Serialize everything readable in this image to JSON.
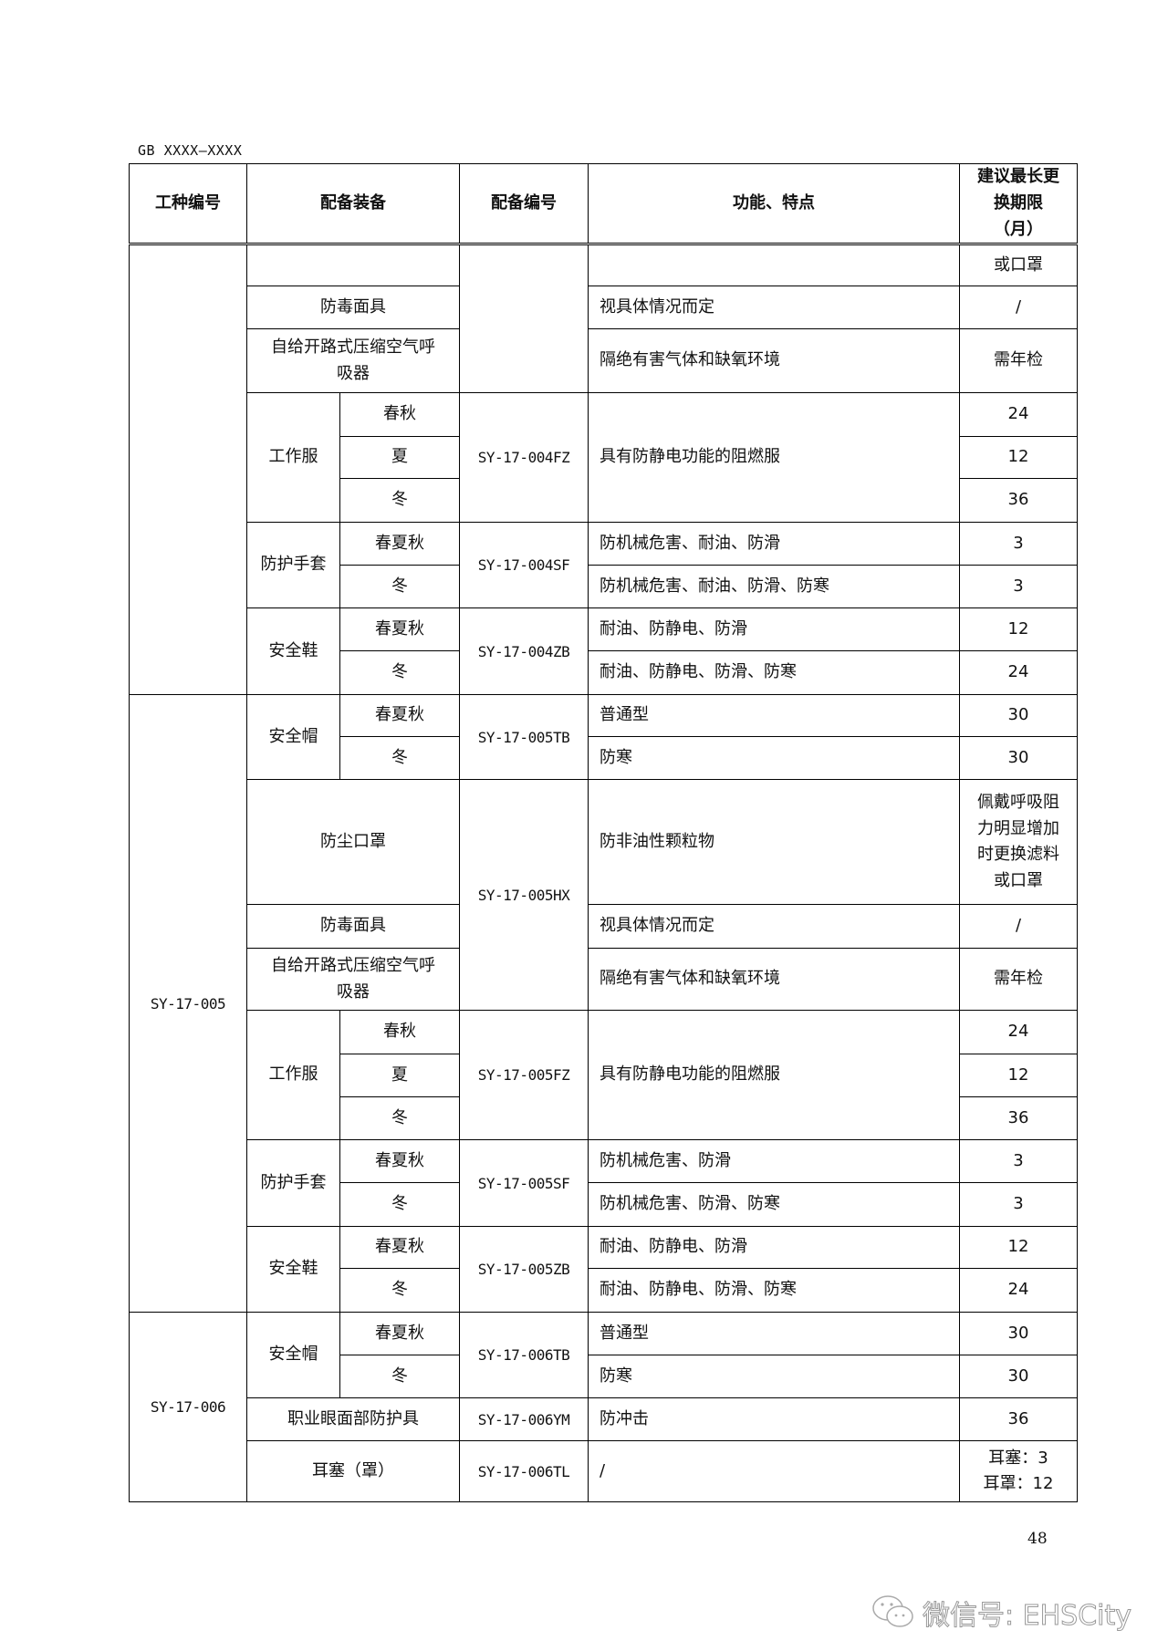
{
  "header": {
    "doc_id": "GB XXXX—XXXX"
  },
  "table": {
    "columns": [
      "工种编号",
      "配备装备",
      "配备编号",
      "功能、特点",
      "建议最长更换期限（月）"
    ],
    "rows": [
      {
        "job": "",
        "equip": "",
        "code": "",
        "func": "",
        "period": "或口罩"
      },
      {
        "equip": "防毒面具",
        "func": "视具体情况而定",
        "period": "/"
      },
      {
        "equip": "自给开路式压缩空气呼吸器",
        "func": "隔绝有害气体和缺氧环境",
        "period": "需年检"
      },
      {
        "equip": "工作服",
        "season": "春秋",
        "code": "SY-17-004FZ",
        "func": "具有防静电功能的阻燃服",
        "period": "24"
      },
      {
        "season": "夏",
        "period": "12"
      },
      {
        "season": "冬",
        "period": "36"
      },
      {
        "equip": "防护手套",
        "season": "春夏秋",
        "code": "SY-17-004SF",
        "func": "防机械危害、耐油、防滑",
        "period": "3"
      },
      {
        "season": "冬",
        "func": "防机械危害、耐油、防滑、防寒",
        "period": "3"
      },
      {
        "equip": "安全鞋",
        "season": "春夏秋",
        "code": "SY-17-004ZB",
        "func": "耐油、防静电、防滑",
        "period": "12"
      },
      {
        "season": "冬",
        "func": "耐油、防静电、防滑、防寒",
        "period": "24"
      },
      {
        "job": "SY-17-005",
        "equip": "安全帽",
        "season": "春夏秋",
        "code": "SY-17-005TB",
        "func": "普通型",
        "period": "30"
      },
      {
        "season": "冬",
        "func": "防寒",
        "period": "30"
      },
      {
        "equip": "防尘口罩",
        "code": "SY-17-005HX",
        "func": "防非油性颗粒物",
        "period": "佩戴呼吸阻力明显增加时更换滤料或口罩"
      },
      {
        "equip": "防毒面具",
        "func": "视具体情况而定",
        "period": "/"
      },
      {
        "equip": "自给开路式压缩空气呼吸器",
        "func": "隔绝有害气体和缺氧环境",
        "period": "需年检"
      },
      {
        "equip": "工作服",
        "season": "春秋",
        "code": "SY-17-005FZ",
        "func": "具有防静电功能的阻燃服",
        "period": "24"
      },
      {
        "season": "夏",
        "period": "12"
      },
      {
        "season": "冬",
        "period": "36"
      },
      {
        "equip": "防护手套",
        "season": "春夏秋",
        "code": "SY-17-005SF",
        "func": "防机械危害、防滑",
        "period": "3"
      },
      {
        "season": "冬",
        "func": "防机械危害、防滑、防寒",
        "period": "3"
      },
      {
        "equip": "安全鞋",
        "season": "春夏秋",
        "code": "SY-17-005ZB",
        "func": "耐油、防静电、防滑",
        "period": "12"
      },
      {
        "season": "冬",
        "func": "耐油、防静电、防滑、防寒",
        "period": "24"
      },
      {
        "job": "SY-17-006",
        "equip": "安全帽",
        "season": "春夏秋",
        "code": "SY-17-006TB",
        "func": "普通型",
        "period": "30"
      },
      {
        "season": "冬",
        "func": "防寒",
        "period": "30"
      },
      {
        "equip": "职业眼面部防护具",
        "code": "SY-17-006YM",
        "func": "防冲击",
        "period": "36"
      },
      {
        "equip": "耳塞（罩）",
        "code": "SY-17-006TL",
        "func": "/",
        "period": "耳塞：3",
        "period2": "耳罩：12"
      }
    ]
  },
  "footer": {
    "page_number": "48",
    "watermark": "微信号: EHSCity",
    "watermark_icon": "wechat-icon"
  }
}
